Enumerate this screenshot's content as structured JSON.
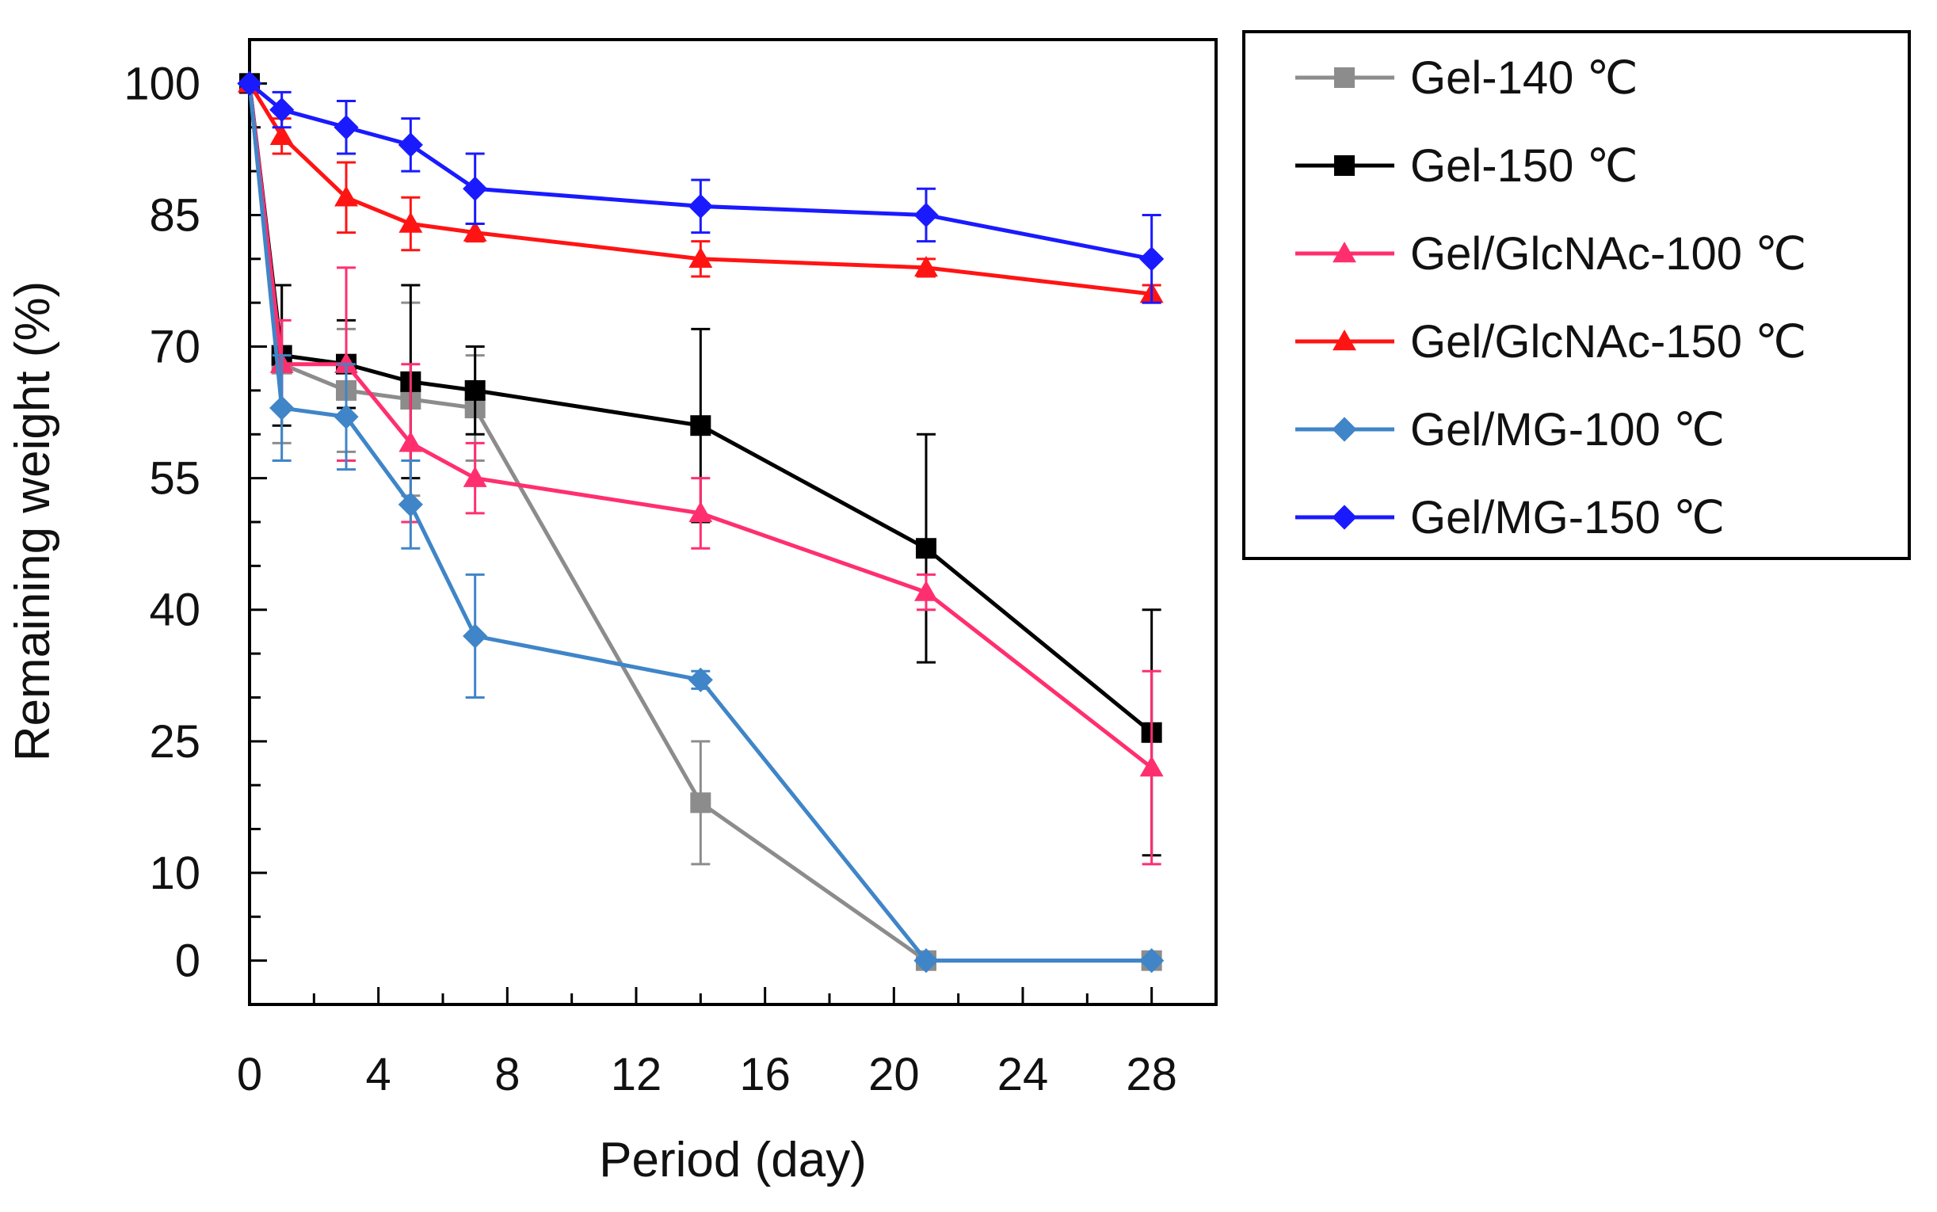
{
  "chart_data": {
    "type": "line",
    "title": "",
    "xlabel": "Period (day)",
    "ylabel": "Remaining weight (%)",
    "xlim": [
      0,
      30
    ],
    "ylim": [
      -5,
      105
    ],
    "xticks": [
      0,
      4,
      8,
      12,
      16,
      20,
      24,
      28
    ],
    "xtick_labels": [
      "0",
      "4",
      "8",
      "12",
      "16",
      "20",
      "24",
      "28"
    ],
    "yticks": [
      0,
      10,
      25,
      40,
      55,
      70,
      85,
      100
    ],
    "ytick_labels": [
      "0",
      "10",
      "25",
      "40",
      "55",
      "70",
      "85",
      "100"
    ],
    "grid": false,
    "legend_position": "right",
    "series": [
      {
        "name": "Gel-140 ℃",
        "color": "#8c8c8c",
        "marker": "square",
        "x": [
          0,
          1,
          3,
          5,
          7,
          14,
          21,
          28
        ],
        "y": [
          100,
          68,
          65,
          64,
          63,
          18,
          0,
          0
        ],
        "err": [
          0,
          9,
          7,
          11,
          6,
          7,
          0,
          0
        ]
      },
      {
        "name": "Gel-150 ℃",
        "color": "#000000",
        "marker": "square",
        "x": [
          0,
          1,
          3,
          5,
          7,
          14,
          21,
          28
        ],
        "y": [
          100,
          69,
          68,
          66,
          65,
          61,
          47,
          26
        ],
        "err": [
          0,
          8,
          5,
          11,
          5,
          11,
          13,
          14
        ]
      },
      {
        "name": "Gel/GlcNAc-100 ℃",
        "color": "#ff2f6f",
        "marker": "triangle",
        "x": [
          0,
          1,
          3,
          5,
          7,
          14,
          21,
          28
        ],
        "y": [
          100,
          68,
          68,
          59,
          55,
          51,
          42,
          22
        ],
        "err": [
          0,
          5,
          11,
          9,
          4,
          4,
          2,
          11
        ]
      },
      {
        "name": "Gel/GlcNAc-150 ℃",
        "color": "#ff1414",
        "marker": "triangle",
        "x": [
          0,
          1,
          3,
          5,
          7,
          14,
          21,
          28
        ],
        "y": [
          100,
          94,
          87,
          84,
          83,
          80,
          79,
          76
        ],
        "err": [
          0,
          2,
          4,
          3,
          1,
          2,
          1,
          1
        ]
      },
      {
        "name": "Gel/MG-100 ℃",
        "color": "#3f85c8",
        "marker": "diamond",
        "x": [
          0,
          1,
          3,
          5,
          7,
          14,
          21,
          28
        ],
        "y": [
          100,
          63,
          62,
          52,
          37,
          32,
          0,
          0
        ],
        "err": [
          0,
          6,
          6,
          5,
          7,
          1,
          0,
          0
        ]
      },
      {
        "name": "Gel/MG-150 ℃",
        "color": "#1a1aff",
        "marker": "diamond",
        "x": [
          0,
          1,
          3,
          5,
          7,
          14,
          21,
          28
        ],
        "y": [
          100,
          97,
          95,
          93,
          88,
          86,
          85,
          80
        ],
        "err": [
          0,
          2,
          3,
          3,
          4,
          3,
          3,
          5
        ]
      }
    ]
  }
}
